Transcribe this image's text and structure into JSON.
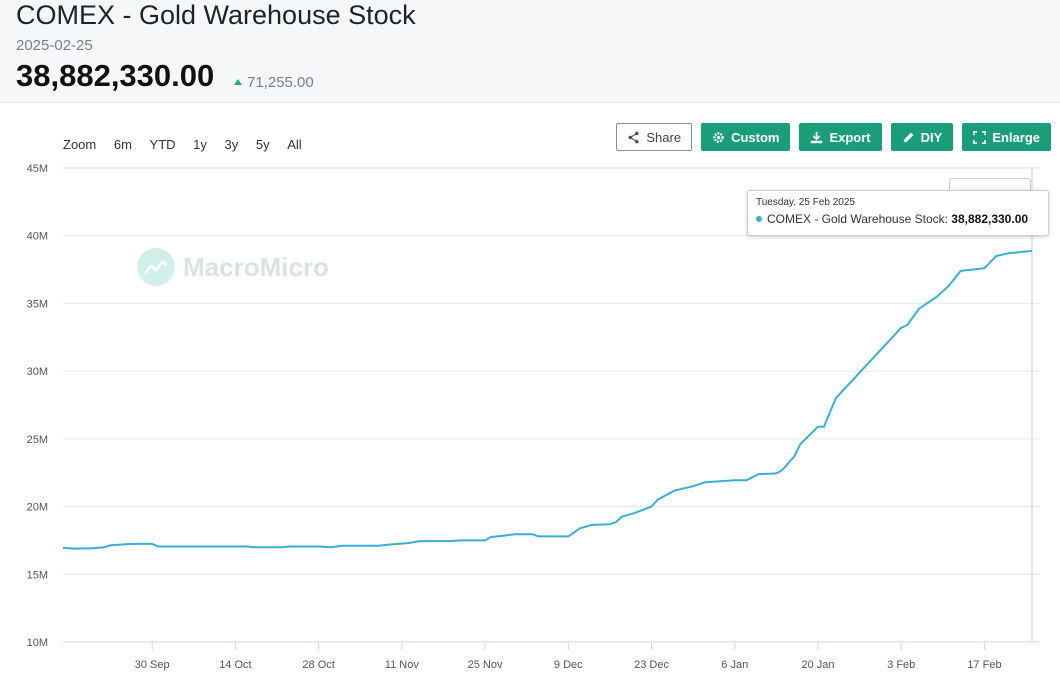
{
  "header": {
    "title": "COMEX - Gold Warehouse Stock",
    "date": "2025-02-25",
    "value": "38,882,330.00",
    "change": "71,255.00",
    "change_color": "#2aa67a"
  },
  "zoom": {
    "label": "Zoom",
    "options": [
      "6m",
      "YTD",
      "1y",
      "3y",
      "5y",
      "All"
    ]
  },
  "toolbar": {
    "share": "Share",
    "custom": "Custom",
    "export": "Export",
    "diy": "DIY",
    "enlarge": "Enlarge",
    "accent": "#1a9e7a"
  },
  "watermark": {
    "text": "MacroMicro"
  },
  "tooltip": {
    "date": "Tuesday, 25 Feb 2025",
    "series": "COMEX - Gold Warehouse Stock:",
    "value": "38,882,330.00"
  },
  "chart_data": {
    "type": "line",
    "title": "",
    "xlabel": "",
    "ylabel": "",
    "ylim": [
      10000000,
      45000000
    ],
    "yticks": [
      {
        "v": 10000000,
        "label": "10M"
      },
      {
        "v": 15000000,
        "label": "15M"
      },
      {
        "v": 20000000,
        "label": "20M"
      },
      {
        "v": 25000000,
        "label": "25M"
      },
      {
        "v": 30000000,
        "label": "30M"
      },
      {
        "v": 35000000,
        "label": "35M"
      },
      {
        "v": 40000000,
        "label": "40M"
      },
      {
        "v": 45000000,
        "label": "45M"
      }
    ],
    "xlim": [
      "2024-09-15",
      "2025-02-25"
    ],
    "xticks": [
      {
        "date": "2024-09-30",
        "label": "30 Sep"
      },
      {
        "date": "2024-10-14",
        "label": "14 Oct"
      },
      {
        "date": "2024-10-28",
        "label": "28 Oct"
      },
      {
        "date": "2024-11-11",
        "label": "11 Nov"
      },
      {
        "date": "2024-11-25",
        "label": "25 Nov"
      },
      {
        "date": "2024-12-09",
        "label": "9 Dec"
      },
      {
        "date": "2024-12-23",
        "label": "23 Dec"
      },
      {
        "date": "2025-01-06",
        "label": "6 Jan"
      },
      {
        "date": "2025-01-20",
        "label": "20 Jan"
      },
      {
        "date": "2025-02-03",
        "label": "3 Feb"
      },
      {
        "date": "2025-02-17",
        "label": "17 Feb"
      }
    ],
    "grid": true,
    "color": "#3aaed8",
    "series": [
      {
        "points": [
          [
            "2024-09-15",
            16950000
          ],
          [
            "2024-09-17",
            16900000
          ],
          [
            "2024-09-20",
            16920000
          ],
          [
            "2024-09-22",
            17000000
          ],
          [
            "2024-09-23",
            17150000
          ],
          [
            "2024-09-26",
            17230000
          ],
          [
            "2024-09-28",
            17250000
          ],
          [
            "2024-09-30",
            17240000
          ],
          [
            "2024-10-01",
            17050000
          ],
          [
            "2024-10-04",
            17050000
          ],
          [
            "2024-10-10",
            17050000
          ],
          [
            "2024-10-16",
            17050000
          ],
          [
            "2024-10-17",
            17000000
          ],
          [
            "2024-10-22",
            17000000
          ],
          [
            "2024-10-23",
            17050000
          ],
          [
            "2024-10-28",
            17050000
          ],
          [
            "2024-10-30",
            17000000
          ],
          [
            "2024-11-01",
            17100000
          ],
          [
            "2024-11-07",
            17100000
          ],
          [
            "2024-11-09",
            17200000
          ],
          [
            "2024-11-12",
            17300000
          ],
          [
            "2024-11-14",
            17450000
          ],
          [
            "2024-11-19",
            17450000
          ],
          [
            "2024-11-21",
            17500000
          ],
          [
            "2024-11-25",
            17500000
          ],
          [
            "2024-11-26",
            17750000
          ],
          [
            "2024-11-28",
            17850000
          ],
          [
            "2024-11-30",
            17950000
          ],
          [
            "2024-12-03",
            17950000
          ],
          [
            "2024-12-04",
            17800000
          ],
          [
            "2024-12-09",
            17800000
          ],
          [
            "2024-12-11",
            18400000
          ],
          [
            "2024-12-13",
            18650000
          ],
          [
            "2024-12-16",
            18700000
          ],
          [
            "2024-12-17",
            18850000
          ],
          [
            "2024-12-18",
            19250000
          ],
          [
            "2024-12-20",
            19500000
          ],
          [
            "2024-12-23",
            20000000
          ],
          [
            "2024-12-24",
            20500000
          ],
          [
            "2024-12-27",
            21200000
          ],
          [
            "2024-12-30",
            21500000
          ],
          [
            "2025-01-01",
            21800000
          ],
          [
            "2025-01-03",
            21850000
          ],
          [
            "2025-01-06",
            21950000
          ],
          [
            "2025-01-08",
            21950000
          ],
          [
            "2025-01-10",
            22400000
          ],
          [
            "2025-01-13",
            22450000
          ],
          [
            "2025-01-14",
            22700000
          ],
          [
            "2025-01-15",
            23200000
          ],
          [
            "2025-01-16",
            23700000
          ],
          [
            "2025-01-17",
            24600000
          ],
          [
            "2025-01-20",
            25900000
          ],
          [
            "2025-01-21",
            25900000
          ],
          [
            "2025-01-23",
            28000000
          ],
          [
            "2025-02-03",
            33200000
          ],
          [
            "2025-02-04",
            33400000
          ],
          [
            "2025-02-06",
            34600000
          ],
          [
            "2025-02-09",
            35500000
          ],
          [
            "2025-02-11",
            36300000
          ],
          [
            "2025-02-13",
            37400000
          ],
          [
            "2025-02-17",
            37600000
          ],
          [
            "2025-02-19",
            38500000
          ],
          [
            "2025-02-21",
            38700000
          ],
          [
            "2025-02-25",
            38882330
          ]
        ]
      }
    ]
  }
}
